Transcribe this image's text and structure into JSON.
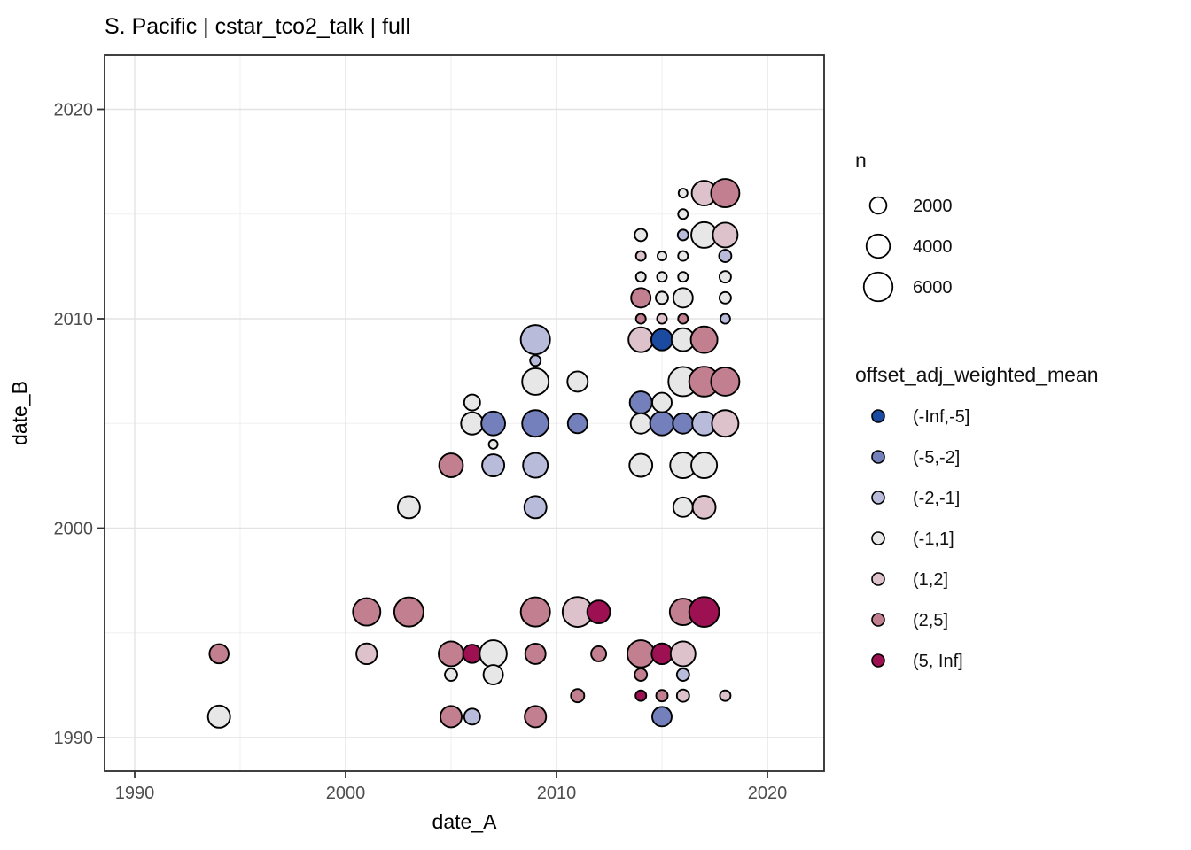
{
  "title": "S. Pacific | cstar_tco2_talk | full",
  "axes": {
    "x": {
      "label": "date_A",
      "major_ticks": [
        1990,
        2000,
        2010,
        2020
      ],
      "minor_ticks": [
        1995,
        2005,
        2015
      ],
      "range": [
        1987.6,
        2022.7
      ]
    },
    "y": {
      "label": "date_B",
      "major_ticks": [
        1990,
        2000,
        2010,
        2020
      ],
      "minor_ticks": [
        1995,
        2005,
        2015
      ],
      "range": [
        1988.4,
        2022.2
      ]
    }
  },
  "legend_size": {
    "title": "n",
    "entries": [
      {
        "label": "2000",
        "n": 2000
      },
      {
        "label": "4000",
        "n": 4000
      },
      {
        "label": "6000",
        "n": 6000
      }
    ]
  },
  "legend_color": {
    "title": "offset_adj_weighted_mean",
    "entries": [
      {
        "label": "(-Inf,-5]",
        "color": "#1a4ba0"
      },
      {
        "label": "(-5,-2]",
        "color": "#7480bc"
      },
      {
        "label": "(-2,-1]",
        "color": "#b8bcda"
      },
      {
        "label": "(-1,1]",
        "color": "#e7e7e7"
      },
      {
        "label": "(1,2]",
        "color": "#ddc2cb"
      },
      {
        "label": "(2,5]",
        "color": "#c17f90"
      },
      {
        "label": "(5, Inf]",
        "color": "#9d1152"
      }
    ]
  },
  "chart_data": {
    "type": "scatter",
    "title": "S. Pacific | cstar_tco2_talk | full",
    "xlabel": "date_A",
    "ylabel": "date_B",
    "xlim": [
      1987.6,
      2022.7
    ],
    "ylim": [
      1988.4,
      2022.2
    ],
    "grid": true,
    "size_variable": "n",
    "color_variable": "offset_adj_weighted_mean",
    "points": [
      {
        "date_A": 1994,
        "date_B": 1994,
        "bin": "(2,5]",
        "n": 2650
      },
      {
        "date_A": 1994,
        "date_B": 1991,
        "bin": "(-1,1]",
        "n": 3550
      },
      {
        "date_A": 2001,
        "date_B": 1996,
        "bin": "(2,5]",
        "n": 5450
      },
      {
        "date_A": 2003,
        "date_B": 1996,
        "bin": "(2,5]",
        "n": 6200
      },
      {
        "date_A": 2009,
        "date_B": 1996,
        "bin": "(2,5]",
        "n": 6200
      },
      {
        "date_A": 2011,
        "date_B": 1996,
        "bin": "(1,2]",
        "n": 6500
      },
      {
        "date_A": 2012,
        "date_B": 1996,
        "bin": "(5, Inf]",
        "n": 3800
      },
      {
        "date_A": 2016,
        "date_B": 1996,
        "bin": "(2,5]",
        "n": 5100
      },
      {
        "date_A": 2017,
        "date_B": 1996,
        "bin": "(5, Inf]",
        "n": 6500
      },
      {
        "date_A": 2001,
        "date_B": 1994,
        "bin": "(1,2]",
        "n": 3100
      },
      {
        "date_A": 2005,
        "date_B": 1994,
        "bin": "(2,5]",
        "n": 4450
      },
      {
        "date_A": 2006,
        "date_B": 1994,
        "bin": "(5, Inf]",
        "n": 2400
      },
      {
        "date_A": 2007,
        "date_B": 1994,
        "bin": "(-1,1]",
        "n": 5300
      },
      {
        "date_A": 2009,
        "date_B": 1994,
        "bin": "(2,5]",
        "n": 3000
      },
      {
        "date_A": 2012,
        "date_B": 1994,
        "bin": "(2,5]",
        "n": 1640
      },
      {
        "date_A": 2014,
        "date_B": 1994,
        "bin": "(2,5]",
        "n": 5300
      },
      {
        "date_A": 2015,
        "date_B": 1994,
        "bin": "(5, Inf]",
        "n": 3100
      },
      {
        "date_A": 2016,
        "date_B": 1994,
        "bin": "(1,2]",
        "n": 4450
      },
      {
        "date_A": 2005,
        "date_B": 1993,
        "bin": "(-1,1]",
        "n": 1100
      },
      {
        "date_A": 2007,
        "date_B": 1993,
        "bin": "(-1,1]",
        "n": 2750
      },
      {
        "date_A": 2014,
        "date_B": 1993,
        "bin": "(2,5]",
        "n": 1100
      },
      {
        "date_A": 2016,
        "date_B": 1993,
        "bin": "(-2,-1]",
        "n": 1100
      },
      {
        "date_A": 2011,
        "date_B": 1992,
        "bin": "(2,5]",
        "n": 1280
      },
      {
        "date_A": 2014,
        "date_B": 1992,
        "bin": "(5, Inf]",
        "n": 820
      },
      {
        "date_A": 2015,
        "date_B": 1992,
        "bin": "(2,5]",
        "n": 960
      },
      {
        "date_A": 2016,
        "date_B": 1992,
        "bin": "(1,2]",
        "n": 1100
      },
      {
        "date_A": 2018,
        "date_B": 1992,
        "bin": "(1,2]",
        "n": 820
      },
      {
        "date_A": 2005,
        "date_B": 1991,
        "bin": "(2,5]",
        "n": 3300
      },
      {
        "date_A": 2006,
        "date_B": 1991,
        "bin": "(-2,-1]",
        "n": 1840
      },
      {
        "date_A": 2009,
        "date_B": 1991,
        "bin": "(2,5]",
        "n": 3300
      },
      {
        "date_A": 2015,
        "date_B": 1991,
        "bin": "(-5,-2]",
        "n": 2750
      },
      {
        "date_A": 2003,
        "date_B": 2001,
        "bin": "(-1,1]",
        "n": 3550
      },
      {
        "date_A": 2005,
        "date_B": 2003,
        "bin": "(2,5]",
        "n": 4100
      },
      {
        "date_A": 2007,
        "date_B": 2003,
        "bin": "(-2,-1]",
        "n": 3550
      },
      {
        "date_A": 2009,
        "date_B": 2003,
        "bin": "(-2,-1]",
        "n": 4450
      },
      {
        "date_A": 2009,
        "date_B": 2001,
        "bin": "(-2,-1]",
        "n": 3550
      },
      {
        "date_A": 2006,
        "date_B": 2006,
        "bin": "(-1,1]",
        "n": 1840
      },
      {
        "date_A": 2006,
        "date_B": 2005,
        "bin": "(-1,1]",
        "n": 3550
      },
      {
        "date_A": 2007,
        "date_B": 2005,
        "bin": "(-5,-2]",
        "n": 4100
      },
      {
        "date_A": 2009,
        "date_B": 2005,
        "bin": "(-5,-2]",
        "n": 5100
      },
      {
        "date_A": 2011,
        "date_B": 2005,
        "bin": "(-5,-2]",
        "n": 2750
      },
      {
        "date_A": 2007,
        "date_B": 2004,
        "bin": "(-1,1]",
        "n": 570
      },
      {
        "date_A": 2009,
        "date_B": 2009,
        "bin": "(-2,-1]",
        "n": 6200
      },
      {
        "date_A": 2009,
        "date_B": 2008,
        "bin": "(-2,-1]",
        "n": 820
      },
      {
        "date_A": 2009,
        "date_B": 2007,
        "bin": "(-1,1]",
        "n": 5100
      },
      {
        "date_A": 2011,
        "date_B": 2007,
        "bin": "(-1,1]",
        "n": 3000
      },
      {
        "date_A": 2016,
        "date_B": 2001,
        "bin": "(-1,1]",
        "n": 2750
      },
      {
        "date_A": 2017,
        "date_B": 2001,
        "bin": "(1,2]",
        "n": 3800
      },
      {
        "date_A": 2014,
        "date_B": 2003,
        "bin": "(-1,1]",
        "n": 3800
      },
      {
        "date_A": 2016,
        "date_B": 2003,
        "bin": "(-1,1]",
        "n": 4800
      },
      {
        "date_A": 2017,
        "date_B": 2003,
        "bin": "(-1,1]",
        "n": 4800
      },
      {
        "date_A": 2014,
        "date_B": 2005,
        "bin": "(-1,1]",
        "n": 3000
      },
      {
        "date_A": 2015,
        "date_B": 2005,
        "bin": "(-5,-2]",
        "n": 4100
      },
      {
        "date_A": 2016,
        "date_B": 2005,
        "bin": "(-5,-2]",
        "n": 3000
      },
      {
        "date_A": 2017,
        "date_B": 2005,
        "bin": "(-2,-1]",
        "n": 4100
      },
      {
        "date_A": 2018,
        "date_B": 2005,
        "bin": "(1,2]",
        "n": 5100
      },
      {
        "date_A": 2014,
        "date_B": 2006,
        "bin": "(-5,-2]",
        "n": 3550
      },
      {
        "date_A": 2015,
        "date_B": 2006,
        "bin": "(-1,1]",
        "n": 2750
      },
      {
        "date_A": 2016,
        "date_B": 2007,
        "bin": "(-1,1]",
        "n": 6200
      },
      {
        "date_A": 2017,
        "date_B": 2007,
        "bin": "(2,5]",
        "n": 6500
      },
      {
        "date_A": 2018,
        "date_B": 2007,
        "bin": "(2,5]",
        "n": 5800
      },
      {
        "date_A": 2014,
        "date_B": 2009,
        "bin": "(1,2]",
        "n": 4450
      },
      {
        "date_A": 2015,
        "date_B": 2009,
        "bin": "(-Inf,-5]",
        "n": 3300
      },
      {
        "date_A": 2016,
        "date_B": 2009,
        "bin": "(-1,1]",
        "n": 3800
      },
      {
        "date_A": 2017,
        "date_B": 2009,
        "bin": "(2,5]",
        "n": 5100
      },
      {
        "date_A": 2014,
        "date_B": 2010,
        "bin": "(2,5]",
        "n": 690
      },
      {
        "date_A": 2015,
        "date_B": 2010,
        "bin": "(1,2]",
        "n": 690
      },
      {
        "date_A": 2016,
        "date_B": 2010,
        "bin": "(2,5]",
        "n": 690
      },
      {
        "date_A": 2018,
        "date_B": 2010,
        "bin": "(-2,-1]",
        "n": 690
      },
      {
        "date_A": 2014,
        "date_B": 2011,
        "bin": "(2,5]",
        "n": 2750
      },
      {
        "date_A": 2015,
        "date_B": 2011,
        "bin": "(-1,1]",
        "n": 1100
      },
      {
        "date_A": 2016,
        "date_B": 2011,
        "bin": "(-1,1]",
        "n": 2750
      },
      {
        "date_A": 2018,
        "date_B": 2011,
        "bin": "(-1,1]",
        "n": 960
      },
      {
        "date_A": 2014,
        "date_B": 2012,
        "bin": "(-1,1]",
        "n": 690
      },
      {
        "date_A": 2015,
        "date_B": 2012,
        "bin": "(-1,1]",
        "n": 690
      },
      {
        "date_A": 2016,
        "date_B": 2012,
        "bin": "(-1,1]",
        "n": 690
      },
      {
        "date_A": 2018,
        "date_B": 2012,
        "bin": "(-1,1]",
        "n": 960
      },
      {
        "date_A": 2014,
        "date_B": 2013,
        "bin": "(1,2]",
        "n": 690
      },
      {
        "date_A": 2015,
        "date_B": 2013,
        "bin": "(-1,1]",
        "n": 570
      },
      {
        "date_A": 2016,
        "date_B": 2013,
        "bin": "(-1,1]",
        "n": 690
      },
      {
        "date_A": 2018,
        "date_B": 2013,
        "bin": "(-2,-1]",
        "n": 1100
      },
      {
        "date_A": 2014,
        "date_B": 2014,
        "bin": "(-1,1]",
        "n": 1100
      },
      {
        "date_A": 2016,
        "date_B": 2014,
        "bin": "(-2,-1]",
        "n": 820
      },
      {
        "date_A": 2017,
        "date_B": 2014,
        "bin": "(-1,1]",
        "n": 4800
      },
      {
        "date_A": 2018,
        "date_B": 2014,
        "bin": "(1,2]",
        "n": 4450
      },
      {
        "date_A": 2016,
        "date_B": 2015,
        "bin": "(-1,1]",
        "n": 690
      },
      {
        "date_A": 2016,
        "date_B": 2016,
        "bin": "(-1,1]",
        "n": 570
      },
      {
        "date_A": 2017,
        "date_B": 2016,
        "bin": "(1,2]",
        "n": 4450
      },
      {
        "date_A": 2018,
        "date_B": 2016,
        "bin": "(2,5]",
        "n": 5800
      }
    ]
  },
  "style": {
    "panel_border": "#2b2b2b",
    "grid_major": "#e3e3e3",
    "grid_minor": "#f0f0f0",
    "point_stroke": "#000000",
    "background": "#ffffff"
  }
}
